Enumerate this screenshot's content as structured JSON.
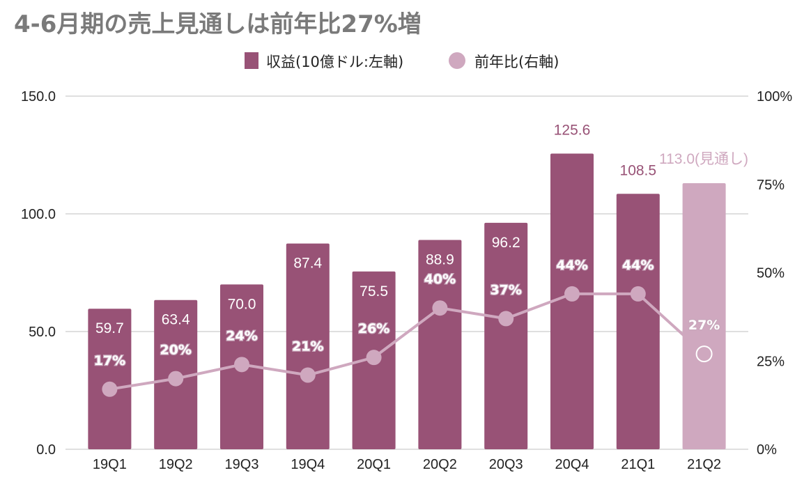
{
  "chart_data": {
    "type": "bar",
    "title": "4-6月期の売上見通しは前年比27%増",
    "categories": [
      "19Q1",
      "19Q2",
      "19Q3",
      "19Q4",
      "20Q1",
      "20Q2",
      "20Q3",
      "20Q4",
      "21Q1",
      "21Q2"
    ],
    "series": [
      {
        "name": "収益(10億ドル:左軸)",
        "type": "bar",
        "axis": "left",
        "values": [
          59.7,
          63.4,
          70.0,
          87.4,
          75.5,
          88.9,
          96.2,
          125.6,
          108.5,
          113.0
        ],
        "labels": [
          "59.7",
          "63.4",
          "70.0",
          "87.4",
          "75.5",
          "88.9",
          "96.2",
          "125.6",
          "108.5",
          "113.0(見通し)"
        ],
        "color": "#985276",
        "forecast_color": "#cfa8bf"
      },
      {
        "name": "前年比(右軸)",
        "type": "line",
        "axis": "right",
        "values": [
          17,
          20,
          24,
          21,
          26,
          40,
          37,
          44,
          44,
          27
        ],
        "labels": [
          "17%",
          "20%",
          "24%",
          "21%",
          "26%",
          "40%",
          "37%",
          "44%",
          "44%",
          "27%"
        ],
        "color": "#cfa8bf"
      }
    ],
    "y_left": {
      "ylim": [
        0,
        150
      ],
      "ticks": [
        "0.0",
        "50.0",
        "100.0",
        "150.0"
      ]
    },
    "y_right": {
      "ylim": [
        0,
        100
      ],
      "ticks": [
        "0%",
        "25%",
        "50%",
        "75%",
        "100%"
      ]
    },
    "grid": true,
    "legend": "top-center",
    "bar_label_color": "#ffffff",
    "outside_label_color": "#985276",
    "forecast_label_color": "#cfa8bf",
    "grid_color": "#cccccc"
  }
}
